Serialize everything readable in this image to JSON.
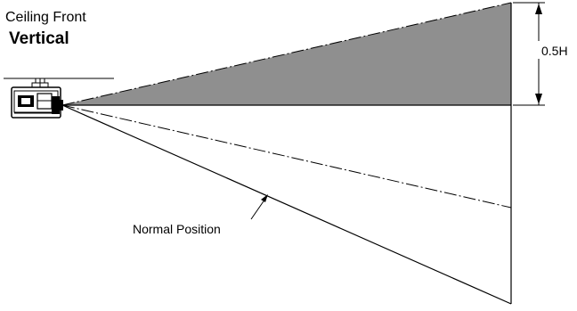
{
  "title": {
    "mode": "Ceiling Front",
    "orientation": "Vertical"
  },
  "dimension_label": "0.5H",
  "callout_label": "Normal Position",
  "colors": {
    "shaded_region": "#8f8f8f",
    "line": "#000000",
    "background": "#ffffff"
  },
  "icons": [
    "projector-icon"
  ]
}
